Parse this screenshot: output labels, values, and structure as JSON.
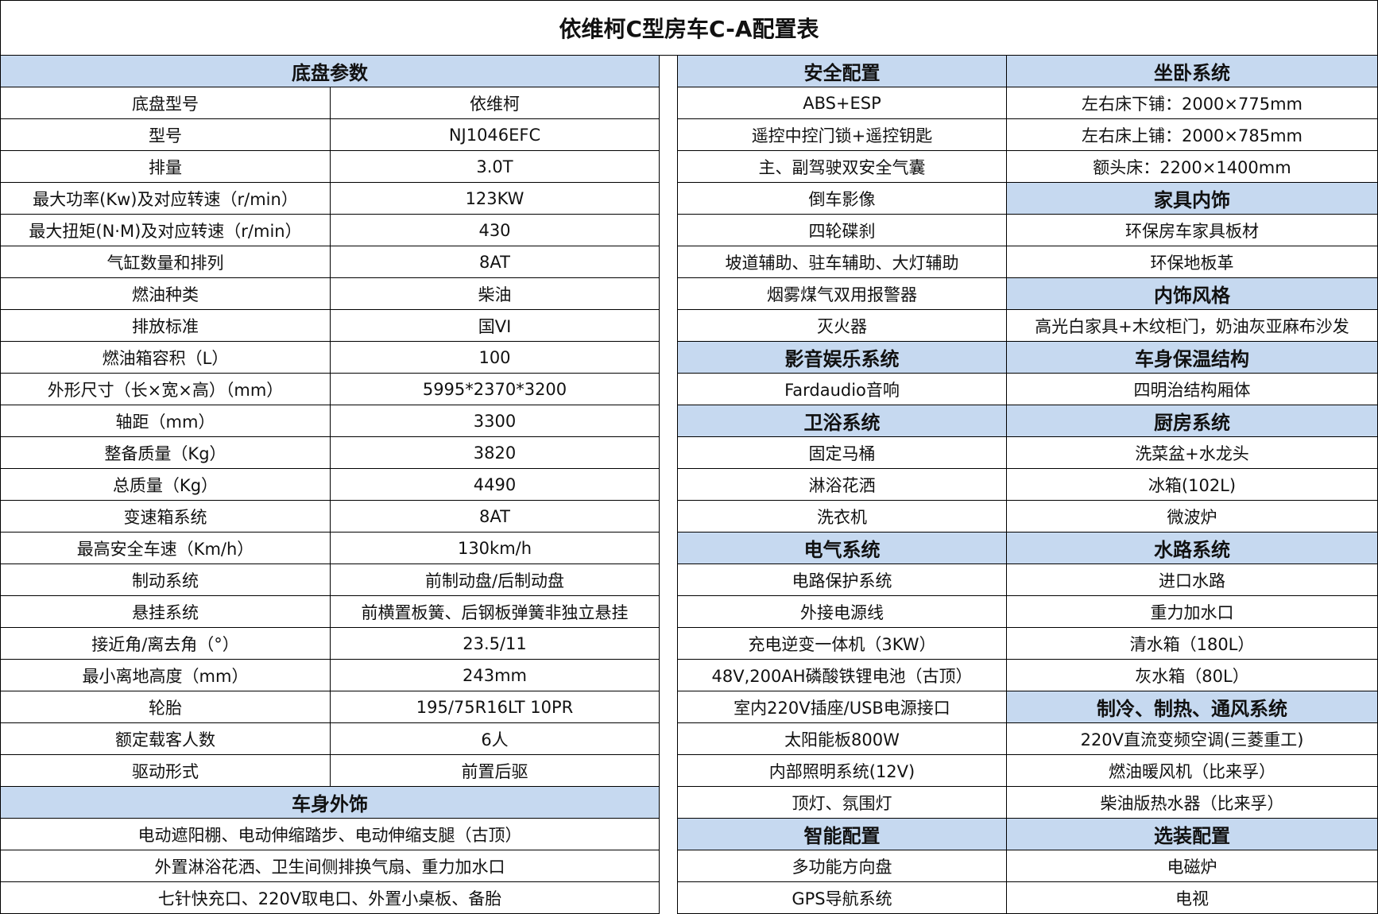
{
  "title": "依维柯C型房车C-A配置表",
  "left": {
    "rows": [
      {
        "header": "底盘参数"
      },
      {
        "cells": [
          "底盘型号",
          "依维柯"
        ]
      },
      {
        "cells": [
          "型号",
          "NJ1046EFC"
        ]
      },
      {
        "cells": [
          "排量",
          "3.0T"
        ]
      },
      {
        "cells": [
          "最大功率(Kw)及对应转速（r/min）",
          "123KW"
        ]
      },
      {
        "cells": [
          "最大扭矩(N·M)及对应转速（r/min）",
          "430"
        ]
      },
      {
        "cells": [
          "气缸数量和排列",
          "8AT"
        ]
      },
      {
        "cells": [
          "燃油种类",
          "柴油"
        ]
      },
      {
        "cells": [
          "排放标准",
          "国VI"
        ]
      },
      {
        "cells": [
          "燃油箱容积（L）",
          "100"
        ]
      },
      {
        "cells": [
          "外形尺寸（长×宽×高）（mm）",
          "5995*2370*3200"
        ]
      },
      {
        "cells": [
          "轴距（mm）",
          "3300"
        ]
      },
      {
        "cells": [
          "整备质量（Kg）",
          "3820"
        ]
      },
      {
        "cells": [
          "总质量（Kg）",
          "4490"
        ]
      },
      {
        "cells": [
          "变速箱系统",
          "8AT"
        ]
      },
      {
        "cells": [
          "最高安全车速（Km/h）",
          "130km/h"
        ]
      },
      {
        "cells": [
          "制动系统",
          "前制动盘/后制动盘"
        ]
      },
      {
        "cells": [
          "悬挂系统",
          "前横置板簧、后钢板弹簧非独立悬挂"
        ]
      },
      {
        "cells": [
          "接近角/离去角（°）",
          "23.5/11"
        ]
      },
      {
        "cells": [
          "最小离地高度（mm）",
          "243mm"
        ]
      },
      {
        "cells": [
          "轮胎",
          "195/75R16LT 10PR"
        ]
      },
      {
        "cells": [
          "额定载客人数",
          "6人"
        ]
      },
      {
        "cells": [
          "驱动形式",
          "前置后驱"
        ]
      },
      {
        "header": "车身外饰"
      },
      {
        "text": "电动遮阳棚、电动伸缩踏步、电动伸缩支腿（古顶）"
      },
      {
        "text": "外置淋浴花洒、卫生间侧排换气扇、重力加水口"
      },
      {
        "text": "七针快充口、220V取电口、外置小桌板、备胎"
      }
    ]
  },
  "right": {
    "columns": [
      [
        {
          "header": "安全配置"
        },
        {
          "text": "ABS+ESP"
        },
        {
          "text": "遥控中控门锁+遥控钥匙"
        },
        {
          "text": "主、副驾驶双安全气囊"
        },
        {
          "text": "倒车影像"
        },
        {
          "text": "四轮碟刹"
        },
        {
          "text": "坡道辅助、驻车辅助、大灯辅助"
        },
        {
          "text": "烟雾煤气双用报警器"
        },
        {
          "text": "灭火器"
        },
        {
          "header": "影音娱乐系统"
        },
        {
          "text": "Fardaudio音响"
        },
        {
          "header": "卫浴系统"
        },
        {
          "text": "固定马桶"
        },
        {
          "text": "淋浴花洒"
        },
        {
          "text": "洗衣机"
        },
        {
          "header": "电气系统"
        },
        {
          "text": "电路保护系统"
        },
        {
          "text": "外接电源线"
        },
        {
          "text": "充电逆变一体机（3KW）"
        },
        {
          "text": "48V,200AH磷酸铁锂电池（古顶）"
        },
        {
          "text": "室内220V插座/USB电源接口"
        },
        {
          "text": "太阳能板800W"
        },
        {
          "text": "内部照明系统(12V)"
        },
        {
          "text": "顶灯、氛围灯"
        },
        {
          "header": "智能配置"
        },
        {
          "text": "多功能方向盘"
        },
        {
          "text": "GPS导航系统"
        }
      ],
      [
        {
          "header": "坐卧系统"
        },
        {
          "text": "左右床下铺：2000×775mm"
        },
        {
          "text": "左右床上铺：2000×785mm"
        },
        {
          "text": "额头床：2200×1400mm"
        },
        {
          "header": "家具内饰"
        },
        {
          "text": "环保房车家具板材"
        },
        {
          "text": "环保地板革"
        },
        {
          "header": "内饰风格"
        },
        {
          "text": "高光白家具+木纹柜门，奶油灰亚麻布沙发"
        },
        {
          "header": "车身保温结构"
        },
        {
          "text": "四明治结构厢体"
        },
        {
          "header": "厨房系统"
        },
        {
          "text": "洗菜盆+水龙头"
        },
        {
          "text": "冰箱(102L)"
        },
        {
          "text": "微波炉"
        },
        {
          "header": "水路系统"
        },
        {
          "text": "进口水路"
        },
        {
          "text": "重力加水口"
        },
        {
          "text": "清水箱（180L）"
        },
        {
          "text": "灰水箱（80L）"
        },
        {
          "header": "制冷、制热、通风系统"
        },
        {
          "text": "220V直流变频空调(三菱重工)"
        },
        {
          "text": "燃油暖风机（比来孚）"
        },
        {
          "text": "柴油版热水器（比来孚）"
        },
        {
          "header": "选装配置"
        },
        {
          "text": "电磁炉"
        },
        {
          "text": "电视"
        }
      ]
    ]
  }
}
